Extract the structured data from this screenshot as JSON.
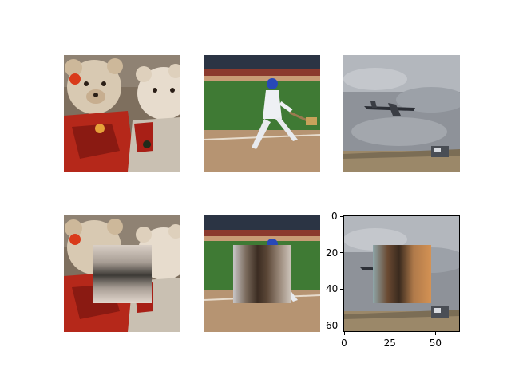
{
  "figure": {
    "columns": 3,
    "rows": 2,
    "images": [
      {
        "subject": "teddy bears",
        "occluded": false
      },
      {
        "subject": "baseball batter",
        "occluded": false
      },
      {
        "subject": "airplane in cloudy sky",
        "occluded": false
      },
      {
        "subject": "teddy bears",
        "occluded": true
      },
      {
        "subject": "baseball batter",
        "occluded": true
      },
      {
        "subject": "airplane in cloudy sky",
        "occluded": true
      }
    ],
    "occlusion_patch": {
      "x": [
        16,
        48
      ],
      "y": [
        16,
        48
      ]
    }
  },
  "axes": {
    "image_size": 64,
    "x_ticks": [
      "0",
      "25",
      "50"
    ],
    "y_ticks": [
      "0",
      "20",
      "40",
      "60"
    ],
    "x_tick_values": [
      0,
      25,
      50
    ],
    "y_tick_values": [
      0,
      20,
      40,
      60
    ]
  }
}
